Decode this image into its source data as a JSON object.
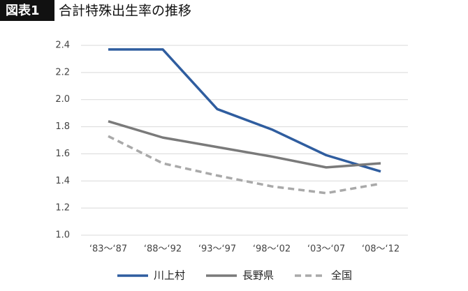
{
  "chart_data": {
    "type": "line",
    "figure_label": "図表1",
    "title": "合計特殊出生率の推移",
    "categories": [
      "‘83～‘87",
      "‘88～‘92",
      "‘93～‘97",
      "‘98～‘02",
      "‘03～‘07",
      "‘08～‘12"
    ],
    "series": [
      {
        "name": "川上村",
        "color": "#2f5d9f",
        "line_style": "solid",
        "values": [
          2.37,
          2.37,
          1.93,
          1.78,
          1.59,
          1.47
        ]
      },
      {
        "name": "長野県",
        "color": "#7a7a7a",
        "line_style": "solid",
        "values": [
          1.84,
          1.72,
          1.65,
          1.58,
          1.5,
          1.53
        ]
      },
      {
        "name": "全国",
        "color": "#a9a9a9",
        "line_style": "dashed",
        "values": [
          1.73,
          1.53,
          1.44,
          1.36,
          1.31,
          1.38
        ]
      }
    ],
    "ylim": [
      1.0,
      2.4
    ],
    "yticks": [
      {
        "value": 1.0,
        "label": "1.0"
      },
      1.2,
      1.4,
      1.6,
      1.8,
      {
        "value": 2.0,
        "label": "2.0"
      },
      2.2,
      2.4
    ],
    "grid": true,
    "legend": "bottom"
  }
}
